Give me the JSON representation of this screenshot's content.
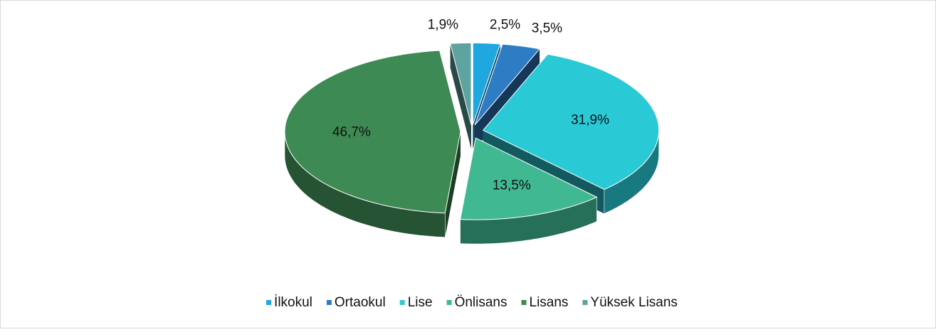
{
  "chart_data": {
    "type": "pie",
    "categories": [
      "İlkokul",
      "Ortaokul",
      "Lise",
      "Önlisans",
      "Lisans",
      "Yüksek Lisans"
    ],
    "series": [
      {
        "values": [
          2.5,
          3.5,
          31.9,
          13.5,
          46.7,
          1.9
        ],
        "value_labels": [
          "2,5%",
          "3,5%",
          "31,9%",
          "13,5%",
          "46,7%",
          "1,9%"
        ],
        "colors": [
          "#1fa8e0",
          "#2e7dc4",
          "#2ac9d6",
          "#40b993",
          "#3e8a55",
          "#5da3a0"
        ]
      }
    ],
    "legend": "bottom"
  }
}
